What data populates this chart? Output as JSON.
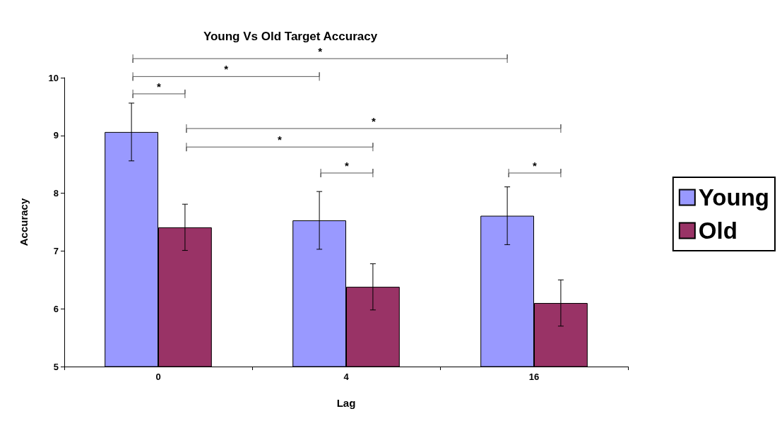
{
  "chart_data": {
    "type": "bar",
    "title": "Young Vs Old Target Accuracy",
    "xlabel": "Lag",
    "ylabel": "Accuracy",
    "categories": [
      "0",
      "4",
      "16"
    ],
    "series": [
      {
        "name": "Young",
        "color": "#9999ff",
        "values": [
          9.06,
          7.53,
          7.61
        ],
        "errors": [
          0.5,
          0.5,
          0.5
        ]
      },
      {
        "name": "Old",
        "color": "#993366",
        "values": [
          7.41,
          6.38,
          6.1
        ],
        "errors": [
          0.4,
          0.4,
          0.4
        ]
      }
    ],
    "ylim": [
      5,
      10
    ],
    "yticks": [
      5,
      6,
      7,
      8,
      9,
      10
    ],
    "grid": false,
    "legend": "right",
    "annotations": [
      "*",
      "*",
      "*",
      "*",
      "*",
      "*",
      "*"
    ]
  }
}
